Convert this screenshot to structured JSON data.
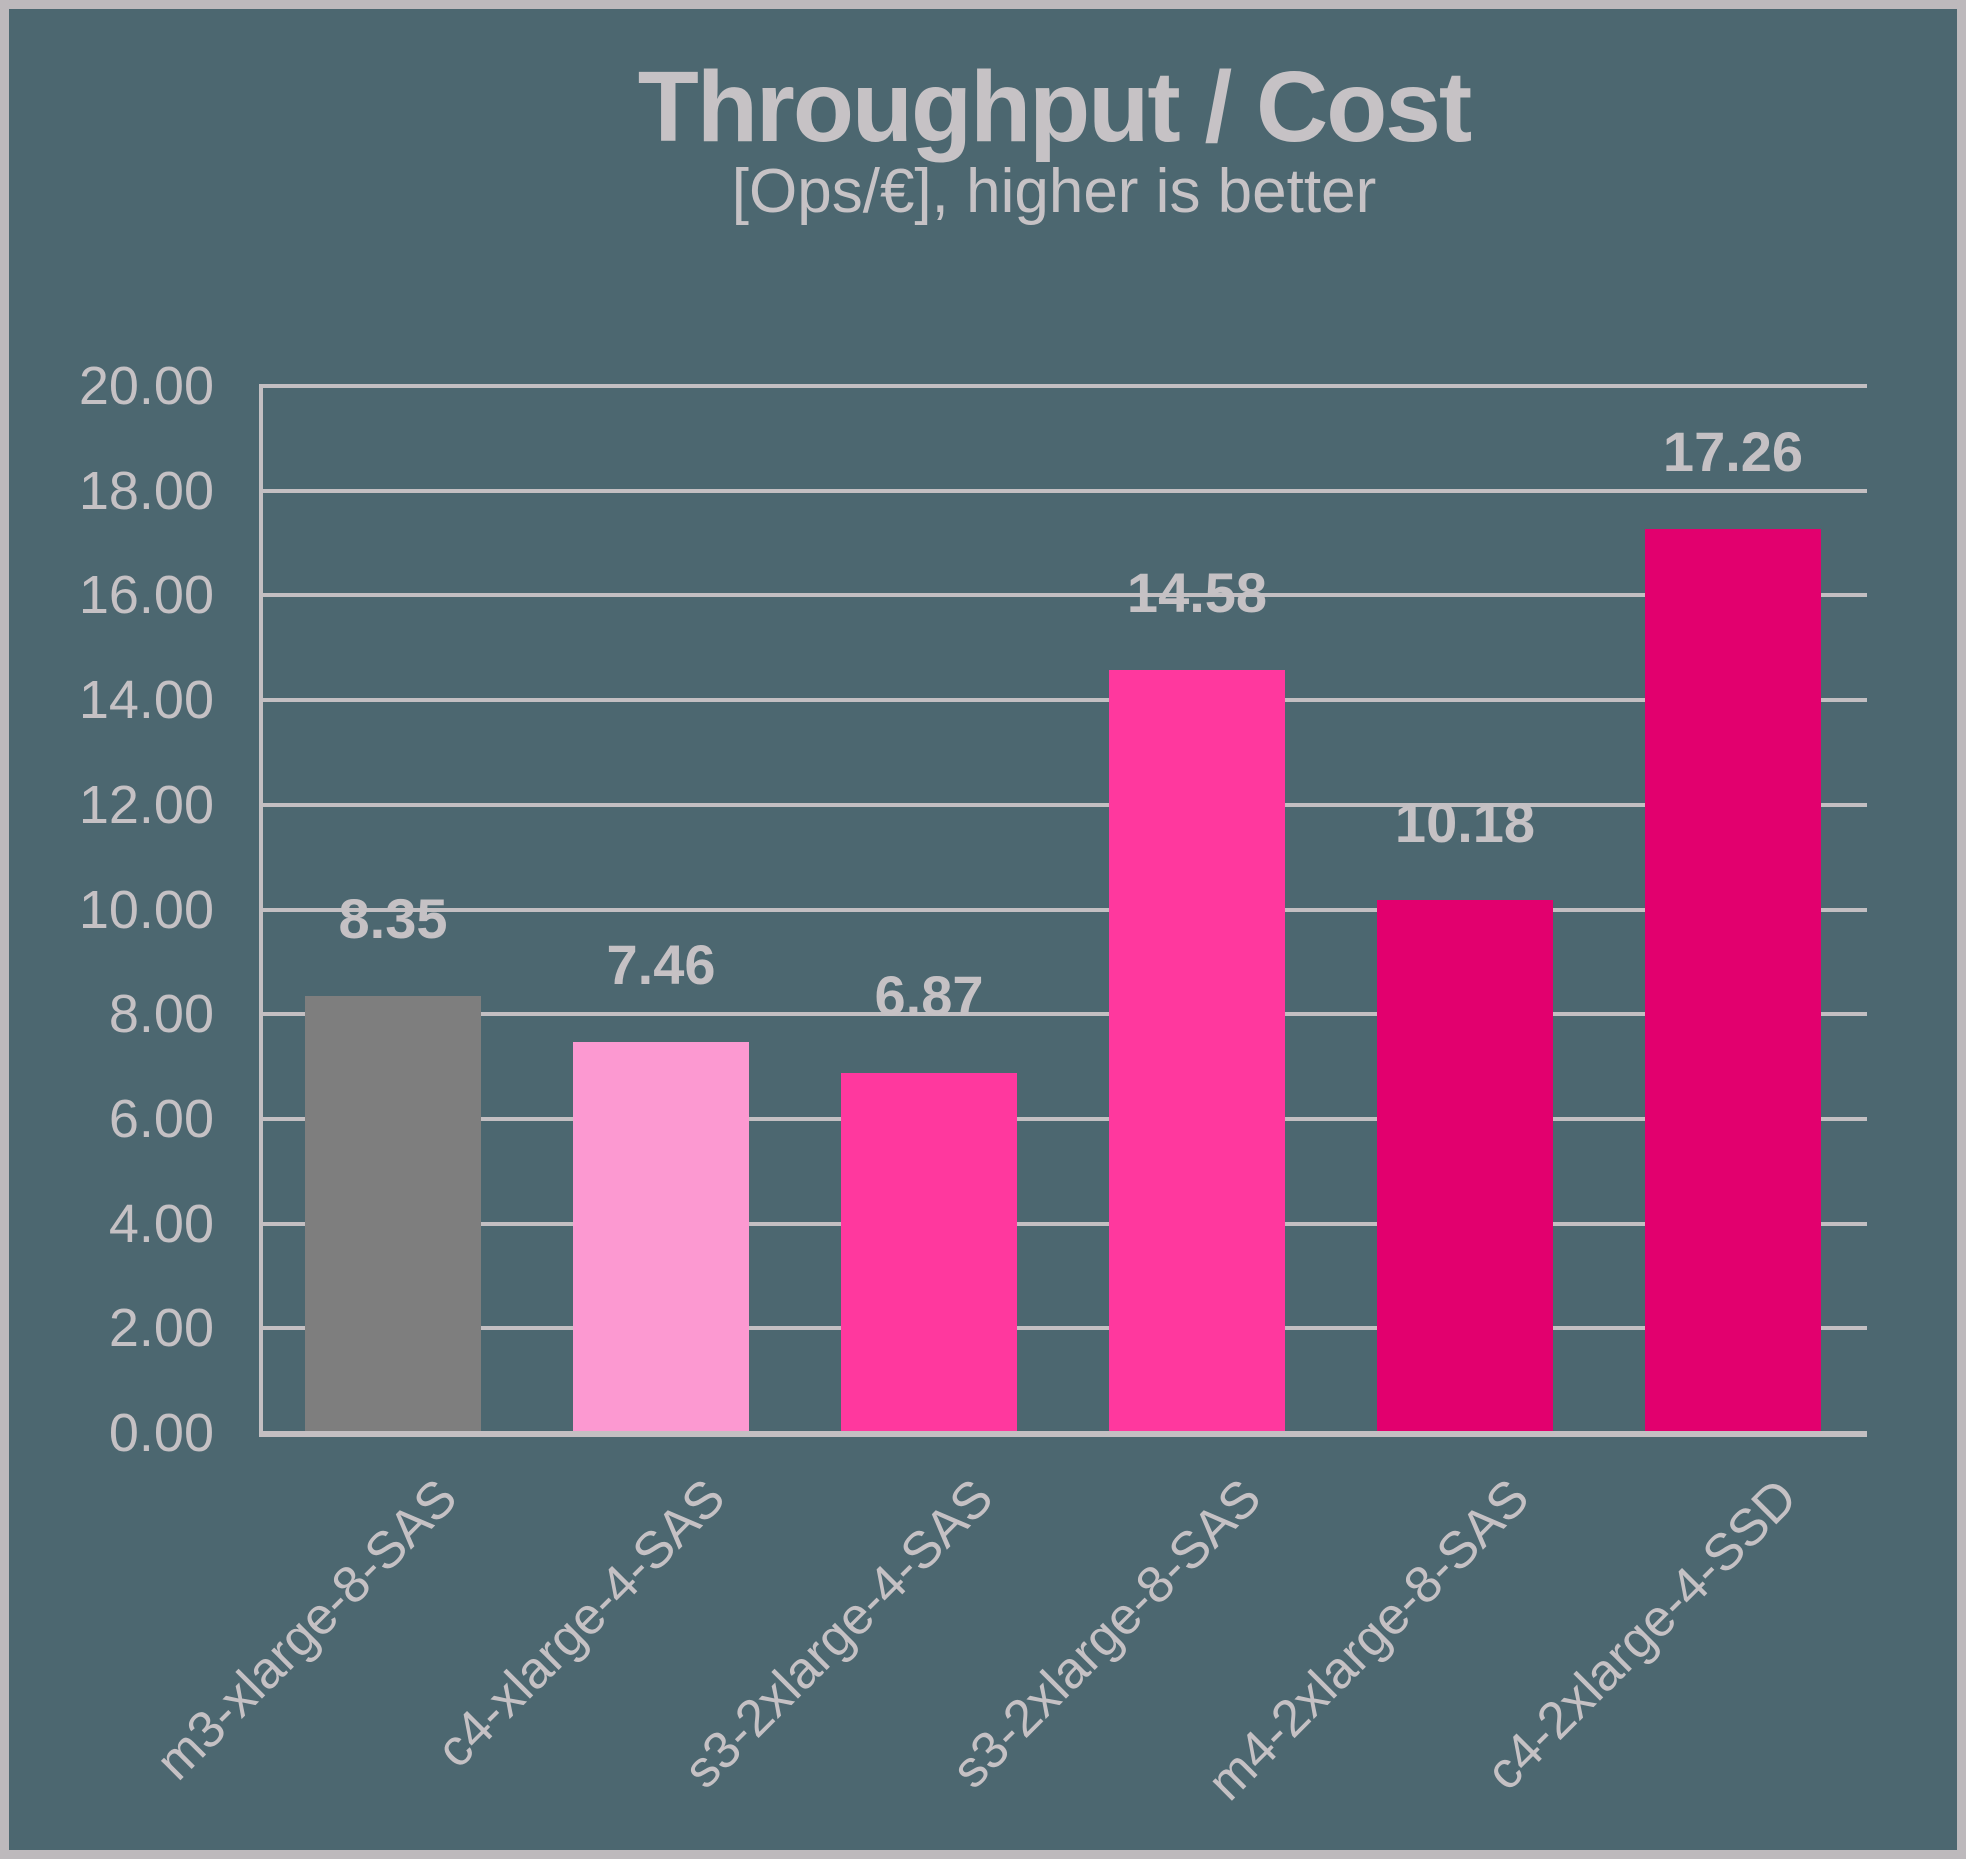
{
  "page": {
    "background_color": "#4C6770",
    "frame_color": "#BDB9BC"
  },
  "chart_data": {
    "type": "bar",
    "title": "Throughput / Cost",
    "subtitle": "[Ops/€], higher is better",
    "categories": [
      "m3-xlarge-8-SAS",
      "c4-xlarge-4-SAS",
      "s3-2xlarge-4-SAS",
      "s3-2xlarge-8-SAS",
      "m4-2xlarge-8-SAS",
      "c4-2xlarge-4-SSD"
    ],
    "values": [
      8.35,
      7.46,
      6.87,
      14.58,
      10.18,
      17.26
    ],
    "value_labels": [
      "8.35",
      "7.46",
      "6.87",
      "14.58",
      "10.18",
      "17.26"
    ],
    "bar_colors": [
      "#7E7E7E",
      "#FC99D1",
      "#FF389E",
      "#FF389E",
      "#E2006E",
      "#E2006E"
    ],
    "ylim": [
      0,
      20
    ],
    "ytick_step": 2,
    "ytick_labels": [
      "0.00",
      "2.00",
      "4.00",
      "6.00",
      "8.00",
      "10.00",
      "12.00",
      "14.00",
      "16.00",
      "18.00",
      "20.00"
    ],
    "grid": true,
    "legend": false,
    "grid_color": "#C3BFC2",
    "axis_color": "#C3BFC2",
    "text_color": "#C5C1C4"
  }
}
